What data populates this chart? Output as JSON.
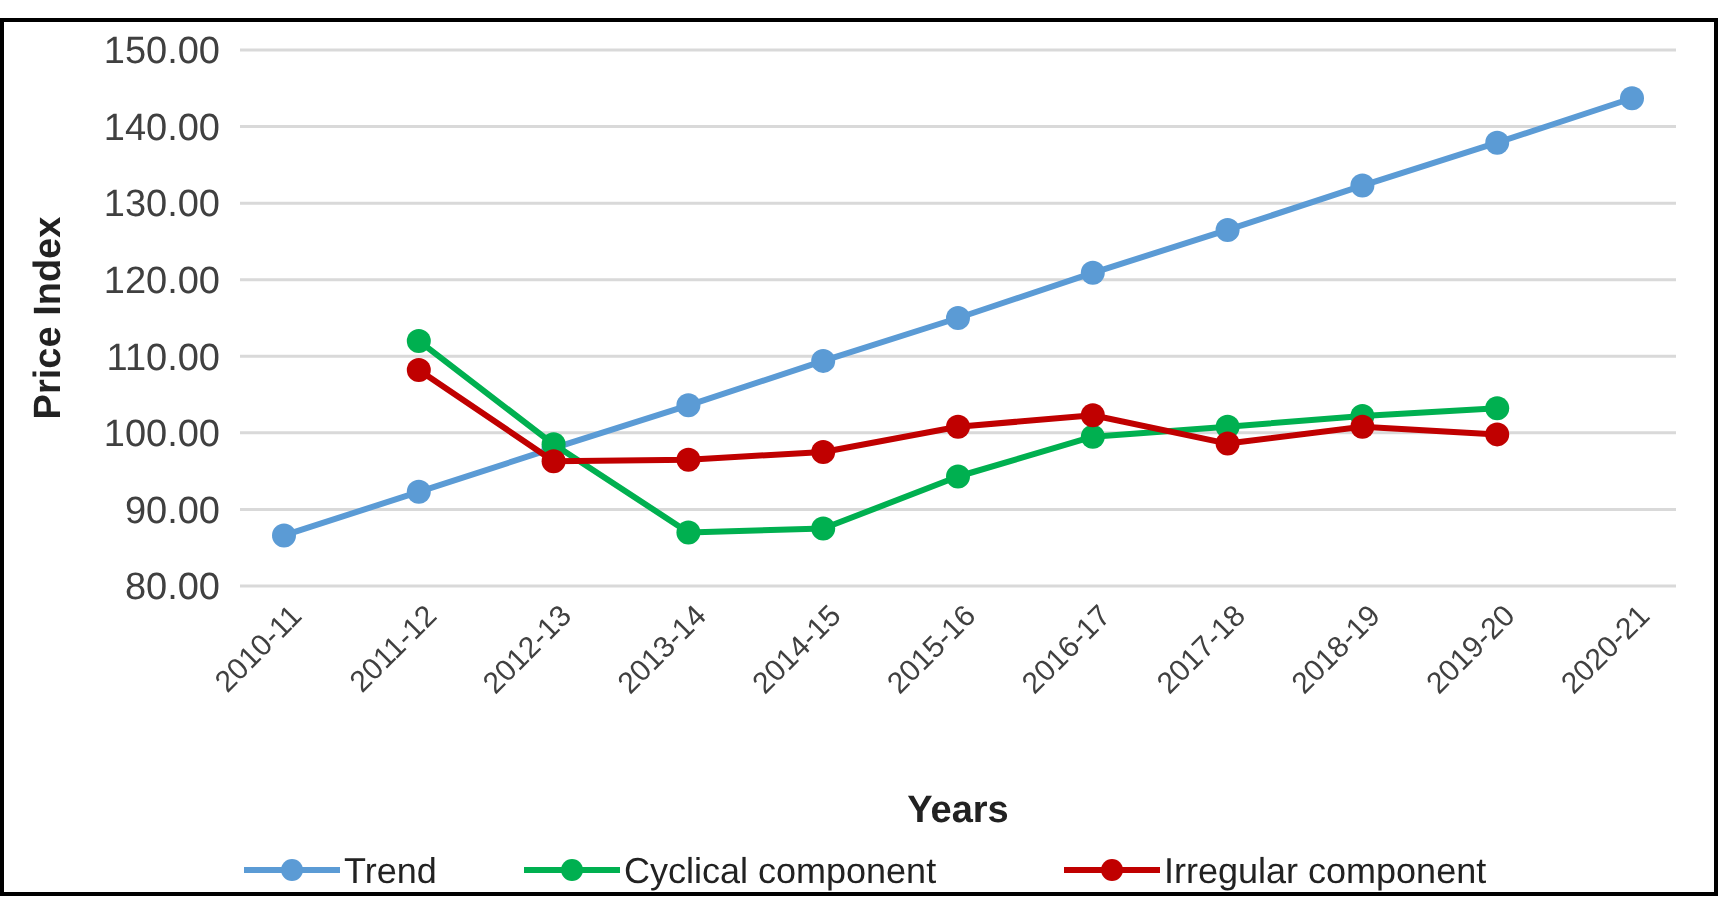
{
  "chart_data": {
    "type": "line",
    "xlabel": "Years",
    "ylabel": "Price Index",
    "categories": [
      "2010-11",
      "2011-12",
      "2012-13",
      "2013-14",
      "2014-15",
      "2015-16",
      "2016-17",
      "2017-18",
      "2018-19",
      "2019-20",
      "2020-21"
    ],
    "series": [
      {
        "name": "Trend",
        "color": "#5b9bd5",
        "values": [
          86.6,
          92.3,
          98.0,
          103.6,
          109.4,
          115.0,
          120.9,
          126.5,
          132.3,
          137.9,
          143.7
        ]
      },
      {
        "name": "Cyclical component",
        "color": "#00b050",
        "values": [
          null,
          112.0,
          98.5,
          87.0,
          87.5,
          94.3,
          99.5,
          100.8,
          102.2,
          103.2,
          null
        ]
      },
      {
        "name": "Irregular component",
        "color": "#c00000",
        "values": [
          null,
          108.2,
          96.3,
          96.5,
          97.5,
          100.8,
          102.3,
          98.6,
          100.8,
          99.8,
          null
        ]
      }
    ],
    "ylim": [
      80,
      150
    ],
    "yticks": [
      {
        "value": 80,
        "label": "80.00"
      },
      {
        "value": 90,
        "label": "90.00"
      },
      {
        "value": 100,
        "label": "100.00"
      },
      {
        "value": 110,
        "label": "110.00"
      },
      {
        "value": 120,
        "label": "120.00"
      },
      {
        "value": 130,
        "label": "130.00"
      },
      {
        "value": 140,
        "label": "140.00"
      },
      {
        "value": 150,
        "label": "150.00"
      }
    ],
    "grid": "y",
    "legend": "bottom",
    "marker": "circle"
  }
}
